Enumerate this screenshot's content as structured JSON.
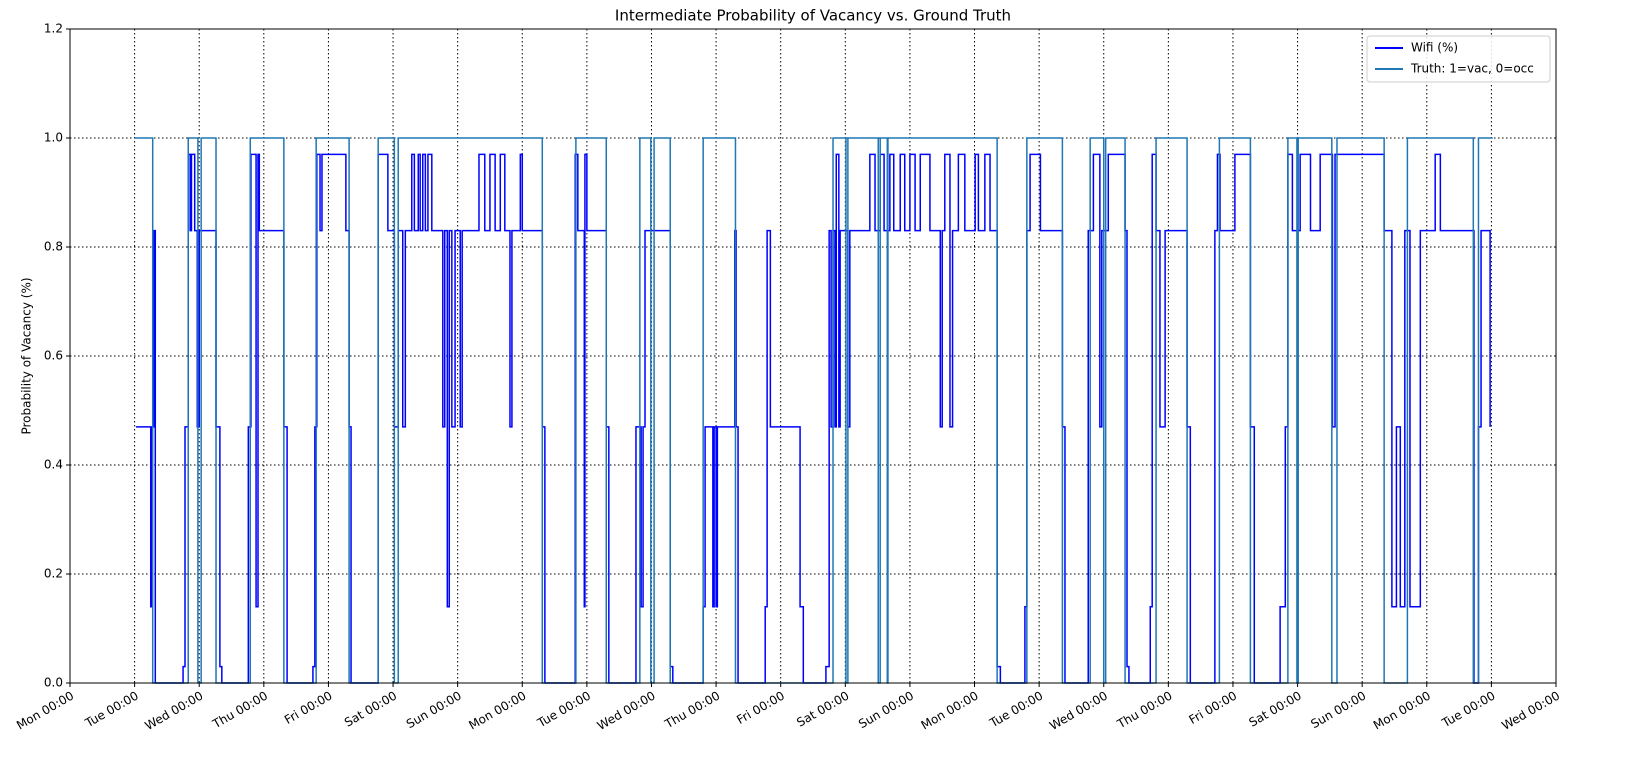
{
  "chart_data": {
    "type": "line",
    "step": "post",
    "title": "Intermediate Probability of Vacancy vs. Ground Truth",
    "ylabel": "Probability of Vacancy (%)",
    "xlim": [
      0,
      23
    ],
    "ylim": [
      0,
      1.2
    ],
    "yticks": [
      {
        "value": 0,
        "label": "0.0"
      },
      0.2,
      0.4,
      0.6,
      0.8,
      {
        "value": 1,
        "label": "1.0"
      },
      1.2
    ],
    "xticks": [
      {
        "value": 0,
        "label": "Mon 00:00"
      },
      {
        "value": 1,
        "label": "Tue 00:00"
      },
      {
        "value": 2,
        "label": "Wed 00:00"
      },
      {
        "value": 3,
        "label": "Thu 00:00"
      },
      {
        "value": 4,
        "label": "Fri 00:00"
      },
      {
        "value": 5,
        "label": "Sat 00:00"
      },
      {
        "value": 6,
        "label": "Sun 00:00"
      },
      {
        "value": 7,
        "label": "Mon 00:00"
      },
      {
        "value": 8,
        "label": "Tue 00:00"
      },
      {
        "value": 9,
        "label": "Wed 00:00"
      },
      {
        "value": 10,
        "label": "Thu 00:00"
      },
      {
        "value": 11,
        "label": "Fri 00:00"
      },
      {
        "value": 12,
        "label": "Sat 00:00"
      },
      {
        "value": 13,
        "label": "Sun 00:00"
      },
      {
        "value": 14,
        "label": "Mon 00:00"
      },
      {
        "value": 15,
        "label": "Tue 00:00"
      },
      {
        "value": 16,
        "label": "Wed 00:00"
      },
      {
        "value": 17,
        "label": "Thu 00:00"
      },
      {
        "value": 18,
        "label": "Fri 00:00"
      },
      {
        "value": 19,
        "label": "Sat 00:00"
      },
      {
        "value": 20,
        "label": "Sun 00:00"
      },
      {
        "value": 21,
        "label": "Mon 00:00"
      },
      {
        "value": 22,
        "label": "Tue 00:00"
      },
      {
        "value": 23,
        "label": "Wed 00:00"
      }
    ],
    "grid": true,
    "legend": "upper right",
    "series": [
      {
        "name": "Wifi (%)",
        "color": "#0000ff",
        "x": [
          1.02,
          1.25,
          1.27,
          1.3,
          1.32,
          1.75,
          1.78,
          1.83,
          1.86,
          1.88,
          1.93,
          1.97,
          2.0,
          2.26,
          2.32,
          2.35,
          2.76,
          2.8,
          2.88,
          2.91,
          2.93,
          3.31,
          3.36,
          3.76,
          3.79,
          3.82,
          3.87,
          3.9,
          4.27,
          4.32,
          4.35,
          4.77,
          4.92,
          5.02,
          5.08,
          5.15,
          5.19,
          5.29,
          5.33,
          5.39,
          5.42,
          5.46,
          5.5,
          5.54,
          5.6,
          5.77,
          5.8,
          5.84,
          5.87,
          5.91,
          5.96,
          6.04,
          6.07,
          6.33,
          6.42,
          6.5,
          6.58,
          6.66,
          6.73,
          6.81,
          6.84,
          6.97,
          7.0,
          7.31,
          7.35,
          7.82,
          7.86,
          7.96,
          7.97,
          8.0,
          8.3,
          8.34,
          8.76,
          8.84,
          8.87,
          8.9,
          9.29,
          9.33,
          9.8,
          9.83,
          9.95,
          9.97,
          10.0,
          10.02,
          10.29,
          10.31,
          10.34,
          10.76,
          10.79,
          10.84,
          11.3,
          11.35,
          11.7,
          11.75,
          11.78,
          11.81,
          11.84,
          11.86,
          11.9,
          11.92,
          12.04,
          12.07,
          12.38,
          12.46,
          12.54,
          12.6,
          12.69,
          12.75,
          12.85,
          12.92,
          13.0,
          13.08,
          13.16,
          13.31,
          13.47,
          13.5,
          13.54,
          13.62,
          13.66,
          13.75,
          13.85,
          14.01,
          14.06,
          14.16,
          14.24,
          14.35,
          14.4,
          14.78,
          14.81,
          14.86,
          15.02,
          15.36,
          15.4,
          15.76,
          15.84,
          15.94,
          15.97,
          16.07,
          16.33,
          16.36,
          16.39,
          16.72,
          16.75,
          16.81,
          16.87,
          16.95,
          17.29,
          17.34,
          17.72,
          17.76,
          17.8,
          18.03,
          18.27,
          18.33,
          18.73,
          18.81,
          18.85,
          18.92,
          19.04,
          19.2,
          19.35,
          19.54,
          19.58,
          20.34,
          20.46,
          20.53,
          20.59,
          20.66,
          20.74,
          20.9,
          21.13,
          21.21,
          21.73,
          21.8,
          21.84,
          21.98
        ],
        "values": [
          0.47,
          0.14,
          0.47,
          0.83,
          0,
          0.03,
          0.47,
          0.97,
          0.83,
          0.97,
          0.83,
          0.47,
          0.83,
          0.47,
          0.03,
          0,
          0.47,
          0.97,
          0.14,
          0.97,
          0.83,
          0.47,
          0,
          0.03,
          0.47,
          0.97,
          0.83,
          0.97,
          0.83,
          0.47,
          0,
          0.97,
          0.83,
          0.47,
          0.83,
          0.47,
          0.83,
          0.97,
          0.83,
          0.97,
          0.83,
          0.97,
          0.83,
          0.97,
          0.83,
          0.47,
          0.83,
          0.14,
          0.83,
          0.47,
          0.83,
          0.47,
          0.83,
          0.97,
          0.83,
          0.97,
          0.83,
          0.97,
          0.83,
          0.47,
          0.83,
          0.97,
          0.83,
          0.47,
          0,
          0.97,
          0.83,
          0.14,
          0.97,
          0.83,
          0.47,
          0,
          0.47,
          0.14,
          0.47,
          0.83,
          0.03,
          0,
          0.14,
          0.47,
          0.14,
          0.47,
          0.14,
          0.47,
          0.83,
          0.47,
          0,
          0.14,
          0.83,
          0.47,
          0.14,
          0,
          0.03,
          0.83,
          0.47,
          0.83,
          0.47,
          0.97,
          0.47,
          0.83,
          0.47,
          0.83,
          0.97,
          0.83,
          0.97,
          0.83,
          0.97,
          0.83,
          0.97,
          0.83,
          0.97,
          0.83,
          0.97,
          0.83,
          0.47,
          0.83,
          0.97,
          0.47,
          0.83,
          0.97,
          0.83,
          0.97,
          0.83,
          0.97,
          0.83,
          0.03,
          0,
          0.14,
          0.83,
          0.97,
          0.83,
          0.47,
          0,
          0.83,
          0.97,
          0.47,
          0.83,
          0.97,
          0.83,
          0.03,
          0,
          0.14,
          0.97,
          0.83,
          0.47,
          0.83,
          0.47,
          0,
          0.83,
          0.97,
          0.83,
          0.97,
          0.47,
          0,
          0.14,
          0.47,
          0.97,
          0.83,
          0.97,
          0.83,
          0.97,
          0.47,
          0.97,
          0.83,
          0.14,
          0.47,
          0.14,
          0.83,
          0.14,
          0.83,
          0.97,
          0.83,
          0,
          0.47,
          0.83,
          0.47
        ]
      },
      {
        "name": "Truth: 1=vac, 0=occ",
        "color": "#1f77b4",
        "x": [
          1.0,
          1.28,
          1.83,
          1.98,
          2.03,
          2.26,
          2.79,
          3.31,
          3.81,
          4.32,
          4.77,
          5.02,
          5.08,
          7.31,
          7.83,
          8.3,
          8.82,
          8.99,
          9.04,
          9.29,
          9.8,
          10.3,
          11.81,
          12.01,
          12.04,
          12.51,
          12.54,
          12.65,
          12.66,
          14.35,
          14.81,
          15.36,
          15.79,
          16.0,
          16.03,
          16.33,
          16.81,
          17.29,
          17.79,
          18.27,
          18.85,
          18.99,
          19.01,
          19.53,
          19.61,
          20.34,
          20.7,
          21.72,
          21.8,
          22.02
        ],
        "values": [
          1,
          0,
          1,
          0,
          1,
          0,
          1,
          0,
          1,
          0,
          1,
          0,
          1,
          0,
          1,
          0,
          1,
          0,
          1,
          0,
          1,
          0,
          1,
          0,
          1,
          0,
          1,
          0,
          1,
          0,
          1,
          0,
          1,
          0,
          1,
          0,
          1,
          0,
          1,
          0,
          1,
          0,
          1,
          0,
          1,
          0,
          1,
          0,
          1,
          1
        ]
      }
    ]
  }
}
